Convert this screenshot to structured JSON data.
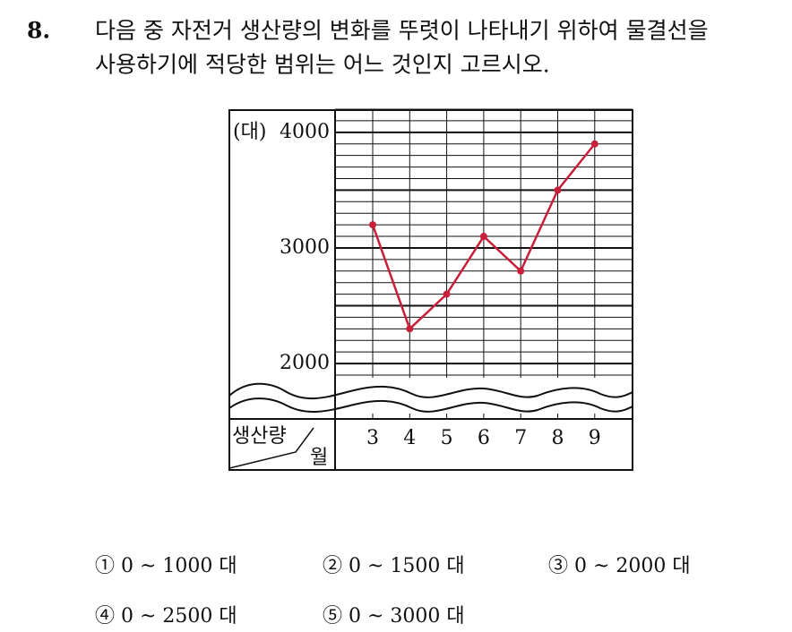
{
  "question": {
    "number": "8.",
    "lines": [
      "다음 중 자전거 생산량의 변화를 뚜렷이 나타내기 위하여 물결선을",
      "사용하기에 적당한 범위는 어느 것인지 고르시오."
    ]
  },
  "chart_data": {
    "type": "line",
    "y_unit": "(대)",
    "x_axis_label": "월",
    "y_axis_label": "생산량",
    "categories": [
      "3",
      "4",
      "5",
      "6",
      "7",
      "8",
      "9"
    ],
    "values": [
      3200,
      2300,
      2600,
      3100,
      2800,
      3500,
      3900
    ],
    "color": "#c8203a",
    "ylim": [
      1900,
      4200
    ],
    "yticks": [
      2000,
      3000,
      4000
    ],
    "grid_lines": [
      1900,
      2000,
      2100,
      2200,
      2300,
      2400,
      2500,
      2600,
      2700,
      2800,
      2900,
      3000,
      3100,
      3200,
      3300,
      3400,
      3500,
      3600,
      3700,
      3800,
      3900,
      4000,
      4100,
      4200
    ],
    "grid": true
  },
  "choices": [
    "① 0 ~ 1000 대",
    "② 0 ~ 1500 대",
    "③ 0 ~ 2000 대",
    "④ 0 ~ 2500 대",
    "⑤ 0 ~ 3000 대"
  ]
}
